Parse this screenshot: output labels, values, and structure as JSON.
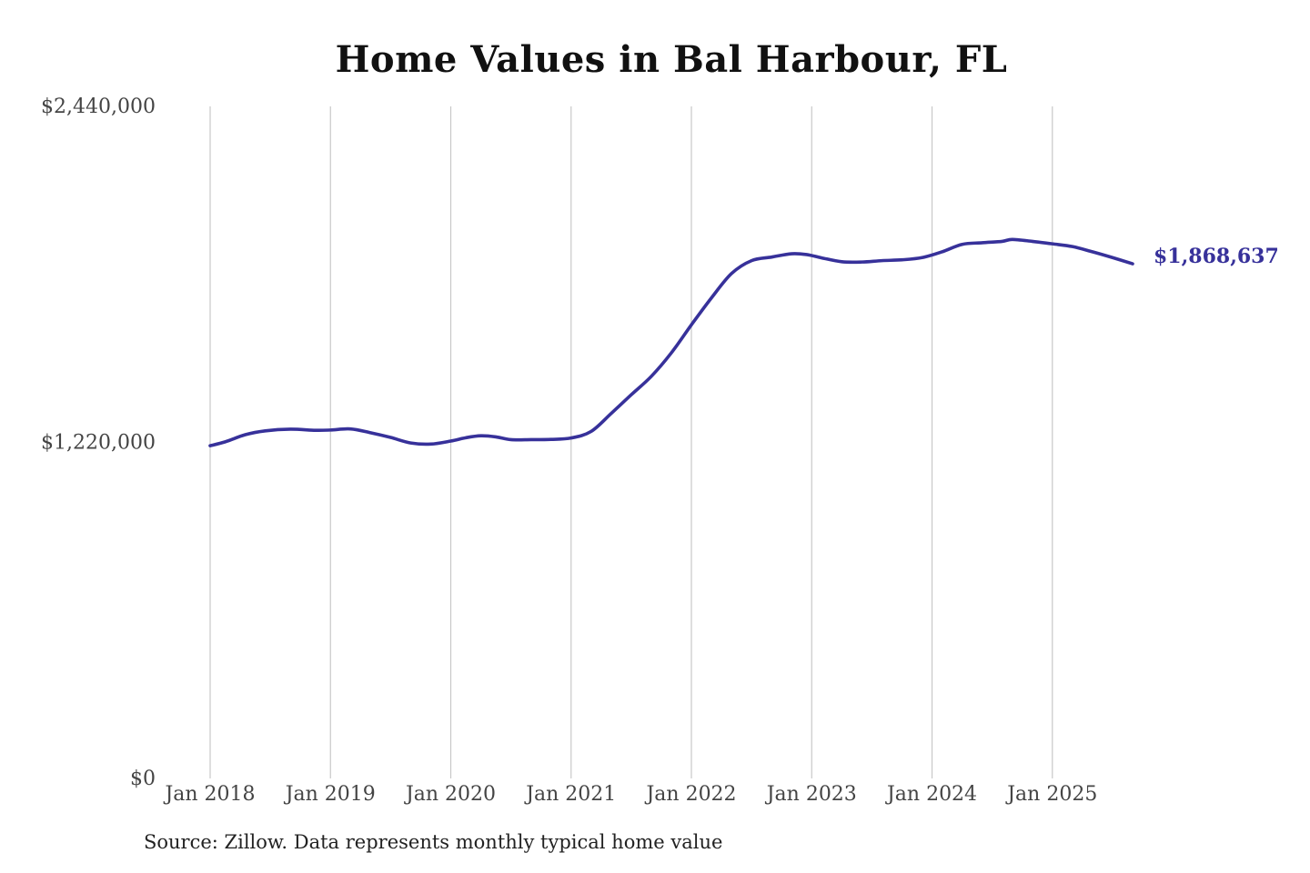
{
  "chart_data": {
    "type": "line",
    "title": "Home Values in Bal Harbour, FL",
    "source_note": "Source: Zillow. Data represents monthly typical home value",
    "xlabel": "",
    "ylabel": "",
    "ylim": [
      0,
      2440000
    ],
    "y_ticks": [
      {
        "value": 0,
        "label": "$0"
      },
      {
        "value": 1220000,
        "label": "$1,220,000"
      },
      {
        "value": 2440000,
        "label": "$2,440,000"
      }
    ],
    "x_ticks": [
      {
        "value": 2018.0,
        "label": "Jan 2018"
      },
      {
        "value": 2019.0,
        "label": "Jan 2019"
      },
      {
        "value": 2020.0,
        "label": "Jan 2020"
      },
      {
        "value": 2021.0,
        "label": "Jan 2021"
      },
      {
        "value": 2022.0,
        "label": "Jan 2022"
      },
      {
        "value": 2023.0,
        "label": "Jan 2023"
      },
      {
        "value": 2024.0,
        "label": "Jan 2024"
      },
      {
        "value": 2025.0,
        "label": "Jan 2025"
      }
    ],
    "xlim": [
      2018.0,
      2025.667
    ],
    "grid": "vertical",
    "line_color": "#37319a",
    "end_label": "$1,868,637",
    "series": [
      {
        "x": [
          2018.0,
          2018.125,
          2018.292,
          2018.458,
          2018.667,
          2018.875,
          2019.0,
          2019.167,
          2019.333,
          2019.5,
          2019.667,
          2019.833,
          2020.0,
          2020.125,
          2020.25,
          2020.375,
          2020.5,
          2020.667,
          2020.833,
          2021.0,
          2021.167,
          2021.333,
          2021.5,
          2021.667,
          2021.833,
          2022.0,
          2022.167,
          2022.333,
          2022.5,
          2022.667,
          2022.833,
          2022.958,
          2023.083,
          2023.25,
          2023.417,
          2023.583,
          2023.75,
          2023.917,
          2024.083,
          2024.25,
          2024.417,
          2024.583,
          2024.667,
          2024.833,
          2025.0,
          2025.167,
          2025.333,
          2025.5,
          2025.667
        ],
        "y": [
          1208000,
          1222000,
          1248000,
          1262000,
          1268000,
          1264000,
          1265000,
          1269000,
          1255000,
          1238000,
          1218000,
          1214000,
          1225000,
          1237000,
          1244000,
          1240000,
          1230000,
          1230000,
          1231000,
          1236000,
          1260000,
          1325000,
          1393000,
          1460000,
          1545000,
          1647000,
          1745000,
          1833000,
          1880000,
          1893000,
          1905000,
          1902000,
          1890000,
          1876000,
          1875000,
          1880000,
          1883000,
          1891000,
          1912000,
          1939000,
          1945000,
          1950000,
          1957000,
          1950000,
          1941000,
          1931000,
          1912000,
          1891000,
          1868637
        ]
      }
    ]
  }
}
